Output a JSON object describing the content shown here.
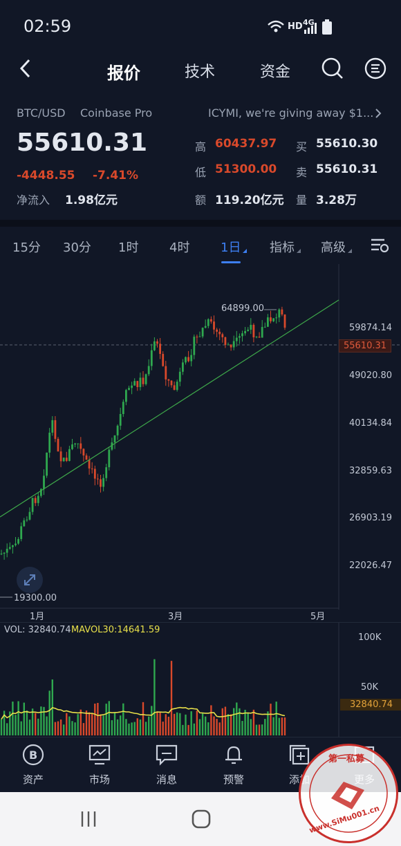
{
  "status_bar": {
    "time": "02:59",
    "hd": "HD",
    "net": "4G"
  },
  "nav": {
    "tabs": [
      "报价",
      "技术",
      "资金"
    ],
    "active": "报价"
  },
  "quote": {
    "pair": "BTC/USD",
    "exchange": "Coinbase Pro",
    "ticker_news": "ICYMI, we're giving away $1....",
    "price": "55610.31",
    "change": "-4448.55",
    "change_pct": "-7.41%",
    "net_inflow_label": "净流入",
    "net_inflow": "1.98亿元",
    "high_label": "高",
    "high": "60437.97",
    "low_label": "低",
    "low": "51300.00",
    "amount_label": "额",
    "amount": "119.20亿元",
    "buy_label": "买",
    "buy": "55610.30",
    "sell_label": "卖",
    "sell": "55610.31",
    "volume_label": "量",
    "volume": "3.28万"
  },
  "timeframes": [
    "15分",
    "30分",
    "1时",
    "4时",
    "1日",
    "指标",
    "高级"
  ],
  "active_timeframe": "1日",
  "chart_data": {
    "type": "candlestick",
    "y_ticks": [
      "59874.14",
      "49020.80",
      "40134.84",
      "32859.63",
      "26903.19",
      "22026.47"
    ],
    "current_price_label": "55610.31",
    "max_label": "64899.00",
    "min_label": "19300.00",
    "x_ticks": [
      "1月",
      "3月",
      "5月"
    ],
    "volume_label": "VOL: 32840.74",
    "mavol_label": "MAVOL30:14641.59",
    "vol_ticks": [
      "100K",
      "50K"
    ],
    "vol_current": "32840.74",
    "up_color": "#2fa84f",
    "down_color": "#d9492b",
    "trend_color": "#3ea84a",
    "mavol_color": "#e8e04a"
  },
  "bottom_nav": [
    "资产",
    "市场",
    "消息",
    "预警",
    "添加",
    "更多"
  ],
  "watermark": {
    "line1": "第一私募",
    "line2": "www.SiMu001.cn"
  }
}
